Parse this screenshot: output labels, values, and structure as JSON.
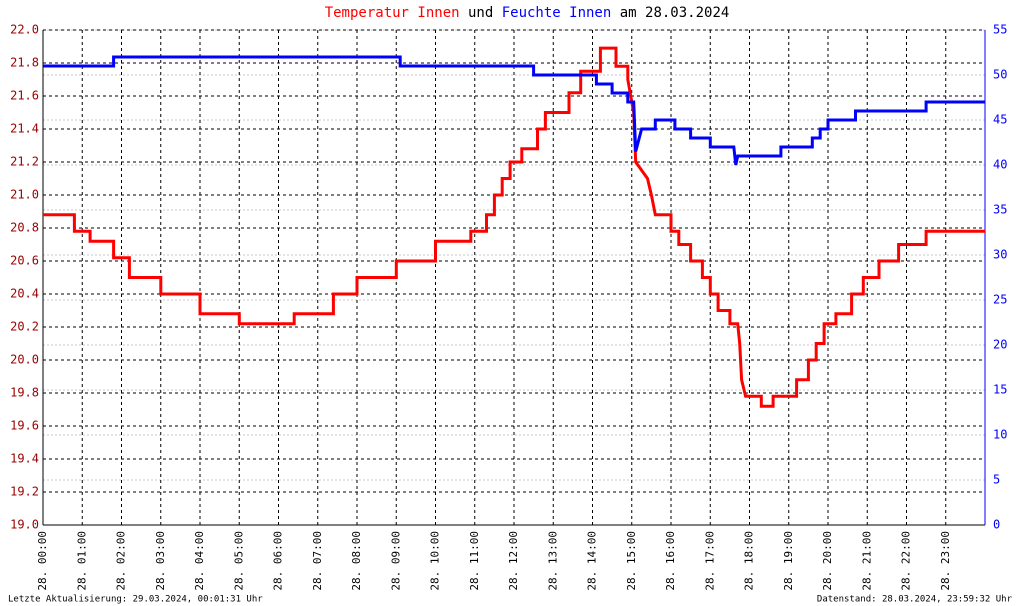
{
  "chart_data": {
    "type": "line",
    "title": [
      {
        "text": "Temperatur Innen",
        "color": "#ff0000"
      },
      {
        "text": "und",
        "color": "#000000"
      },
      {
        "text": "Feuchte Innen",
        "color": "#0000ff"
      },
      {
        "text": "am 28.03.2024",
        "color": "#000000"
      }
    ],
    "footer_left": "Letzte Aktualisierung: 29.03.2024, 00:01:31 Uhr",
    "footer_right": "Datenstand: 28.03.2024, 23:59:32 Uhr",
    "xlim": [
      0,
      24
    ],
    "xticks": [
      {
        "value": 0,
        "label": "28. 00:00"
      },
      {
        "value": 1,
        "label": "28. 01:00"
      },
      {
        "value": 2,
        "label": "28. 02:00"
      },
      {
        "value": 3,
        "label": "28. 03:00"
      },
      {
        "value": 4,
        "label": "28. 04:00"
      },
      {
        "value": 5,
        "label": "28. 05:00"
      },
      {
        "value": 6,
        "label": "28. 06:00"
      },
      {
        "value": 7,
        "label": "28. 07:00"
      },
      {
        "value": 8,
        "label": "28. 08:00"
      },
      {
        "value": 9,
        "label": "28. 09:00"
      },
      {
        "value": 10,
        "label": "28. 10:00"
      },
      {
        "value": 11,
        "label": "28. 11:00"
      },
      {
        "value": 12,
        "label": "28. 12:00"
      },
      {
        "value": 13,
        "label": "28. 13:00"
      },
      {
        "value": 14,
        "label": "28. 14:00"
      },
      {
        "value": 15,
        "label": "28. 15:00"
      },
      {
        "value": 16,
        "label": "28. 16:00"
      },
      {
        "value": 17,
        "label": "28. 17:00"
      },
      {
        "value": 18,
        "label": "28. 18:00"
      },
      {
        "value": 19,
        "label": "28. 19:00"
      },
      {
        "value": 20,
        "label": "28. 20:00"
      },
      {
        "value": 21,
        "label": "28. 21:00"
      },
      {
        "value": 22,
        "label": "28. 22:00"
      },
      {
        "value": 23,
        "label": "28. 23:00"
      }
    ],
    "ylim": [
      19,
      22
    ],
    "yticks": [
      {
        "value": 19,
        "label": "19.0"
      },
      19.2,
      19.4,
      19.6,
      19.8,
      {
        "value": 20,
        "label": "20.0"
      },
      20.2,
      20.4,
      20.6,
      20.8,
      {
        "value": 21,
        "label": "21.0"
      },
      21.2,
      21.4,
      21.6,
      21.8,
      {
        "value": 22,
        "label": "22.0"
      }
    ],
    "y2lim": [
      0,
      55
    ],
    "y2ticks": [
      0,
      5,
      10,
      15,
      20,
      25,
      30,
      35,
      40,
      45,
      50,
      55
    ],
    "y_color": "#990000",
    "y2_color": "#0000ff",
    "grid": true,
    "series": [
      {
        "color": "#ff0000",
        "x": [
          0,
          0.8,
          0.8,
          1.2,
          1.2,
          1.8,
          1.8,
          2.2,
          2.2,
          3.0,
          3.0,
          4.0,
          4.0,
          5.0,
          5.0,
          6.4,
          6.4,
          7.4,
          7.4,
          8.0,
          8.0,
          9.0,
          9.0,
          10.0,
          10.0,
          10.9,
          10.9,
          11.3,
          11.3,
          11.5,
          11.5,
          11.7,
          11.7,
          11.9,
          11.9,
          12.2,
          12.2,
          12.6,
          12.6,
          12.8,
          12.8,
          13.4,
          13.4,
          13.7,
          13.7,
          14.2,
          14.2,
          14.6,
          14.6,
          14.9,
          14.9,
          15.05,
          15.1,
          15.4,
          15.5,
          15.6,
          16.0,
          16.0,
          16.2,
          16.2,
          16.5,
          16.5,
          16.8,
          16.8,
          17.0,
          17.0,
          17.2,
          17.2,
          17.5,
          17.5,
          17.7,
          17.75,
          17.8,
          17.9,
          18.3,
          18.3,
          18.6,
          18.6,
          19.2,
          19.2,
          19.5,
          19.5,
          19.7,
          19.7,
          19.9,
          19.9,
          20.2,
          20.2,
          20.6,
          20.6,
          20.9,
          20.9,
          21.3,
          21.3,
          21.8,
          21.8,
          22.5,
          22.5,
          24
        ],
        "values": [
          20.88,
          20.88,
          20.78,
          20.78,
          20.72,
          20.72,
          20.62,
          20.62,
          20.5,
          20.5,
          20.4,
          20.4,
          20.28,
          20.28,
          20.22,
          20.22,
          20.28,
          20.28,
          20.4,
          20.4,
          20.5,
          20.5,
          20.6,
          20.6,
          20.72,
          20.72,
          20.78,
          20.78,
          20.88,
          20.88,
          21.0,
          21.0,
          21.1,
          21.1,
          21.2,
          21.2,
          21.28,
          21.28,
          21.4,
          21.4,
          21.5,
          21.5,
          21.62,
          21.62,
          21.75,
          21.75,
          21.89,
          21.89,
          21.78,
          21.78,
          21.7,
          21.5,
          21.2,
          21.1,
          21.0,
          20.88,
          20.88,
          20.78,
          20.78,
          20.7,
          20.7,
          20.6,
          20.6,
          20.5,
          20.5,
          20.4,
          20.4,
          20.3,
          20.3,
          20.22,
          20.22,
          20.1,
          19.88,
          19.78,
          19.78,
          19.72,
          19.72,
          19.78,
          19.78,
          19.88,
          19.88,
          20.0,
          20.0,
          20.1,
          20.1,
          20.22,
          20.22,
          20.28,
          20.28,
          20.4,
          20.4,
          20.5,
          20.5,
          20.6,
          20.6,
          20.7,
          20.7,
          20.78,
          20.78
        ]
      },
      {
        "color": "#0000ff",
        "axis": "y2",
        "x": [
          0,
          1.8,
          1.8,
          9.1,
          9.1,
          12.5,
          12.5,
          14.1,
          14.1,
          14.5,
          14.5,
          14.9,
          14.9,
          15.05,
          15.1,
          15.25,
          15.6,
          15.6,
          16.1,
          16.1,
          16.5,
          16.5,
          17.0,
          17.0,
          17.6,
          17.65,
          17.7,
          18.8,
          18.8,
          19.6,
          19.6,
          19.8,
          19.8,
          20.0,
          20.0,
          20.7,
          20.7,
          22.5,
          22.5,
          24
        ],
        "values": [
          51,
          51,
          52,
          52,
          51,
          51,
          50,
          50,
          49,
          49,
          48,
          48,
          47,
          47,
          41.5,
          44,
          44,
          45,
          45,
          44,
          44,
          43,
          43,
          42,
          42,
          40,
          41,
          41,
          42,
          42,
          43,
          43,
          44,
          44,
          45,
          45,
          46,
          46,
          47,
          47
        ]
      }
    ]
  }
}
